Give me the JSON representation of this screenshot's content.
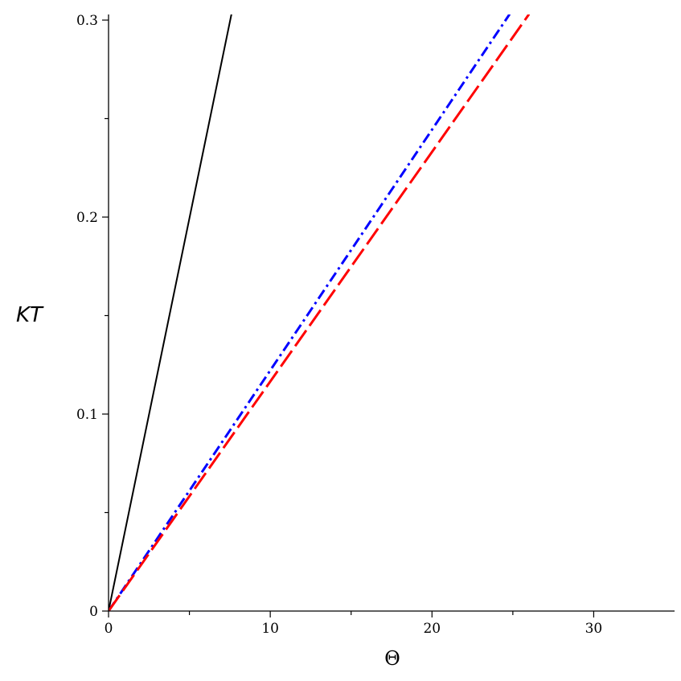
{
  "chart_data": {
    "type": "line",
    "title": "",
    "xlabel": "Θ",
    "ylabel": "KT",
    "xlim": [
      0,
      35
    ],
    "ylim": [
      0,
      0.3
    ],
    "x_ticks": [
      0,
      10,
      20,
      30
    ],
    "x_tick_labels": [
      "0",
      "10",
      "20",
      "30"
    ],
    "x_minor_ticks": [
      5,
      15,
      25
    ],
    "y_ticks": [
      0,
      0.1,
      0.2,
      0.3
    ],
    "y_tick_labels": [
      "0",
      "0.1",
      "0.2",
      "0.3"
    ],
    "y_minor_ticks": [
      0.05,
      0.15,
      0.25
    ],
    "grid": false,
    "series": [
      {
        "color": "#000000",
        "dash": "solid",
        "x": [
          0,
          7.6
        ],
        "y": [
          0,
          0.303
        ]
      },
      {
        "color": "#0000ff",
        "dash": "dashdot",
        "x": [
          0,
          24.8
        ],
        "y": [
          0,
          0.303
        ]
      },
      {
        "color": "#ff0000",
        "dash": "longdash",
        "x": [
          0,
          26.0
        ],
        "y": [
          0,
          0.303
        ]
      }
    ]
  }
}
